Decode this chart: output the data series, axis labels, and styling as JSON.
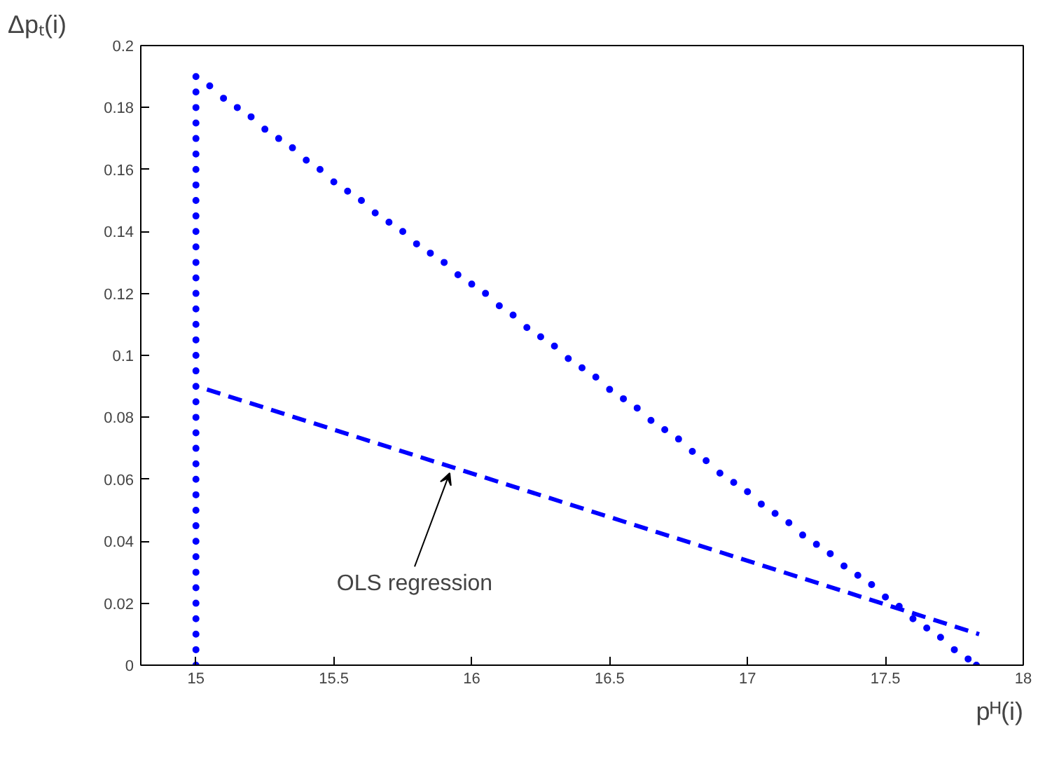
{
  "chart_data": {
    "type": "scatter",
    "xlabel": "pᴴ(i)",
    "ylabel": "Δpₜ(i)",
    "xlim": [
      14.8,
      18
    ],
    "ylim": [
      0,
      0.2
    ],
    "xticks": [
      15,
      15.5,
      16,
      16.5,
      17,
      17.5,
      18
    ],
    "yticks": [
      0,
      0.02,
      0.04,
      0.06,
      0.08,
      0.1,
      0.12,
      0.14,
      0.16,
      0.18,
      0.2
    ],
    "grid": false,
    "annotations": [
      {
        "text": "OLS regression",
        "x": 15.92,
        "y": 0.062
      }
    ],
    "series": [
      {
        "color": "#0000ff",
        "marker": "circle",
        "x": [
          15,
          15,
          15,
          15,
          15,
          15,
          15,
          15,
          15,
          15,
          15,
          15,
          15,
          15,
          15,
          15,
          15,
          15,
          15,
          15,
          15,
          15,
          15,
          15,
          15,
          15,
          15,
          15,
          15,
          15,
          15,
          15,
          15,
          15,
          15,
          15,
          15,
          15,
          15,
          15.05,
          15.1,
          15.15,
          15.2,
          15.25,
          15.3,
          15.35,
          15.4,
          15.45,
          15.5,
          15.55,
          15.6,
          15.65,
          15.7,
          15.75,
          15.8,
          15.85,
          15.9,
          15.95,
          16.0,
          16.05,
          16.1,
          16.15,
          16.2,
          16.25,
          16.3,
          16.35,
          16.4,
          16.45,
          16.5,
          16.55,
          16.6,
          16.65,
          16.7,
          16.75,
          16.8,
          16.85,
          16.9,
          16.95,
          17.0,
          17.05,
          17.1,
          17.15,
          17.2,
          17.25,
          17.3,
          17.35,
          17.4,
          17.45,
          17.5,
          17.55,
          17.6,
          17.65,
          17.7,
          17.75,
          17.8,
          17.83
        ],
        "values": [
          0,
          0.005,
          0.01,
          0.015,
          0.02,
          0.025,
          0.03,
          0.035,
          0.04,
          0.045,
          0.05,
          0.055,
          0.06,
          0.065,
          0.07,
          0.075,
          0.08,
          0.085,
          0.09,
          0.095,
          0.1,
          0.105,
          0.11,
          0.115,
          0.12,
          0.125,
          0.13,
          0.135,
          0.14,
          0.145,
          0.15,
          0.155,
          0.16,
          0.165,
          0.17,
          0.175,
          0.18,
          0.185,
          0.19,
          0.187,
          0.183,
          0.18,
          0.177,
          0.173,
          0.17,
          0.167,
          0.163,
          0.16,
          0.156,
          0.153,
          0.15,
          0.146,
          0.143,
          0.14,
          0.136,
          0.133,
          0.13,
          0.126,
          0.123,
          0.12,
          0.116,
          0.113,
          0.109,
          0.106,
          0.103,
          0.099,
          0.096,
          0.093,
          0.089,
          0.086,
          0.083,
          0.079,
          0.076,
          0.073,
          0.069,
          0.066,
          0.062,
          0.059,
          0.056,
          0.052,
          0.049,
          0.046,
          0.042,
          0.039,
          0.036,
          0.032,
          0.029,
          0.026,
          0.022,
          0.019,
          0.015,
          0.012,
          0.009,
          0.005,
          0.002,
          0
        ]
      },
      {
        "type": "line",
        "color": "#0000ff",
        "line_style": "dashed",
        "x": [
          15.04,
          17.84
        ],
        "values": [
          0.089,
          0.01
        ]
      }
    ]
  }
}
